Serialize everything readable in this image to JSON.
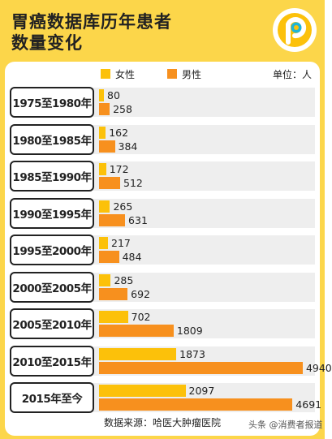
{
  "title": "胃癌数据库历年患者\n数量变化",
  "legend": {
    "female_label": "女性",
    "male_label": "男性"
  },
  "unit": "单位：人",
  "footer": "数据来源：哈医大肿瘤医院",
  "watermark": "头条 @消费者报道",
  "colors": {
    "background": "#fcd64a",
    "female": "#fcc10a",
    "male": "#f7901e",
    "track": "#eeeeee"
  },
  "chart_data": {
    "type": "bar",
    "orientation": "horizontal",
    "categories": [
      "1975至1980年",
      "1980至1985年",
      "1985至1990年",
      "1990至1995年",
      "1995至2000年",
      "2000至2005年",
      "2005至2010年",
      "2010至2015年",
      "2015年至今"
    ],
    "series": [
      {
        "name": "女性",
        "values": [
          80,
          162,
          172,
          265,
          217,
          285,
          702,
          1873,
          2097
        ]
      },
      {
        "name": "男性",
        "values": [
          258,
          384,
          512,
          631,
          484,
          692,
          1809,
          4940,
          4691
        ]
      }
    ],
    "xlim": [
      0,
      5000
    ]
  }
}
